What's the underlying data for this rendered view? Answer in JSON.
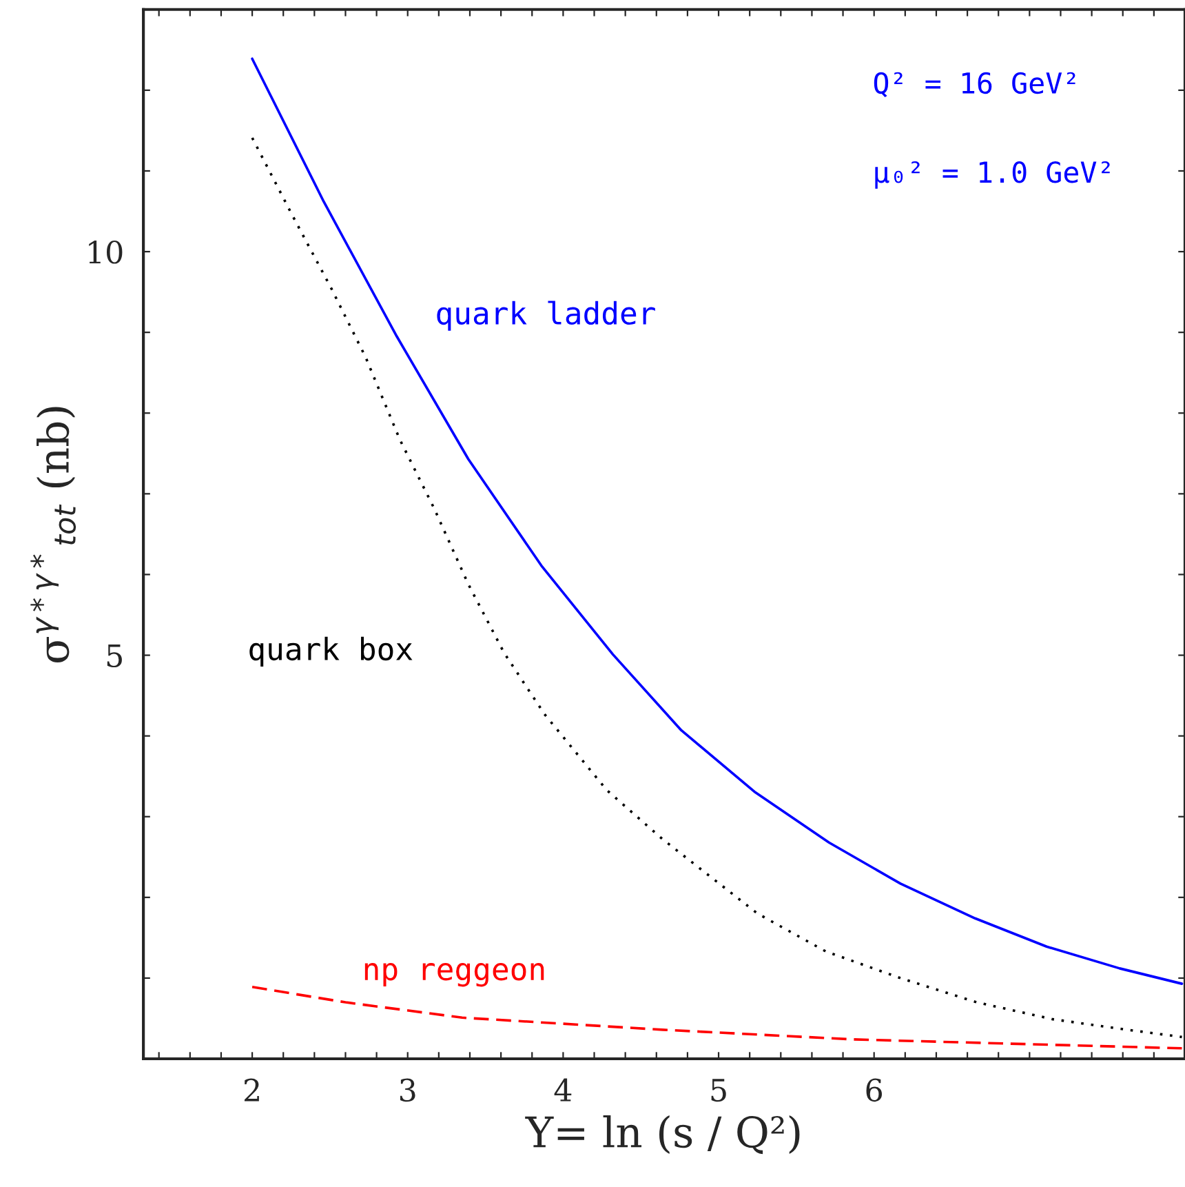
{
  "chart_data": {
    "type": "line",
    "xlabel": "Y= ln (s / Q²)",
    "ylabel": "σ$^{γ*γ*}$$_{tot}$ (nb)",
    "xlim": [
      1.3,
      8.0
    ],
    "ylim": [
      0,
      13
    ],
    "xticks": [
      {
        "value": 1.4,
        "label": null
      },
      {
        "value": 1.6,
        "label": null
      },
      {
        "value": 1.8,
        "label": null
      },
      2,
      {
        "value": 2.2,
        "label": null
      },
      {
        "value": 2.4,
        "label": null
      },
      {
        "value": 2.6,
        "label": null
      },
      {
        "value": 2.8,
        "label": null
      },
      3,
      {
        "value": 3.2,
        "label": null
      },
      {
        "value": 3.4,
        "label": null
      },
      {
        "value": 3.6,
        "label": null
      },
      {
        "value": 3.8,
        "label": null
      },
      4,
      {
        "value": 4.2,
        "label": null
      },
      {
        "value": 4.4,
        "label": null
      },
      {
        "value": 4.6,
        "label": null
      },
      {
        "value": 4.8,
        "label": null
      },
      5,
      {
        "value": 5.2,
        "label": null
      },
      {
        "value": 5.4,
        "label": null
      },
      {
        "value": 5.6,
        "label": null
      },
      {
        "value": 5.8,
        "label": null
      },
      6,
      {
        "value": 6.2,
        "label": null
      },
      {
        "value": 6.4,
        "label": null
      },
      {
        "value": 6.6,
        "label": null
      },
      {
        "value": 6.8,
        "label": null
      },
      {
        "value": 7.0,
        "label": null
      },
      {
        "value": 7.2,
        "label": null
      },
      {
        "value": 7.4,
        "label": null
      },
      {
        "value": 7.6,
        "label": null
      },
      {
        "value": 7.8,
        "label": null
      }
    ],
    "yticks": [
      {
        "value": 1,
        "label": null
      },
      {
        "value": 2,
        "label": null
      },
      {
        "value": 3,
        "label": null
      },
      {
        "value": 4,
        "label": null
      },
      5,
      {
        "value": 6,
        "label": null
      },
      {
        "value": 7,
        "label": null
      },
      {
        "value": 8,
        "label": null
      },
      {
        "value": 9,
        "label": null
      },
      10,
      {
        "value": 11,
        "label": null
      },
      {
        "value": 12,
        "label": null
      }
    ],
    "grid": false,
    "legend": false,
    "series": [
      {
        "name": "quark ladder",
        "color": "#0000ff",
        "line_style": "solid",
        "x": [
          2.0,
          2.46,
          2.93,
          3.39,
          3.86,
          4.32,
          4.76,
          5.23,
          5.71,
          6.17,
          6.65,
          7.11,
          7.58,
          7.98
        ],
        "values": [
          12.39,
          10.62,
          8.95,
          7.43,
          6.11,
          5.01,
          4.07,
          3.31,
          2.68,
          2.17,
          1.74,
          1.39,
          1.12,
          0.93
        ]
      },
      {
        "name": "quark box",
        "color": "#000000",
        "line_style": "dotted",
        "x": [
          2.0,
          2.25,
          2.51,
          2.73,
          2.95,
          3.17,
          3.39,
          3.62,
          3.88,
          4.28,
          4.64,
          5.25,
          5.69,
          6.17,
          6.66,
          7.15,
          7.63,
          7.98
        ],
        "values": [
          11.41,
          10.48,
          9.54,
          8.69,
          7.67,
          6.82,
          5.88,
          5.03,
          4.27,
          3.33,
          2.72,
          1.8,
          1.33,
          1.0,
          0.7,
          0.49,
          0.36,
          0.27
        ]
      },
      {
        "name": "np reggeon",
        "color": "#ff0000",
        "line_style": "dashed",
        "x": [
          2.0,
          2.6,
          3.35,
          4.64,
          5.87,
          7.98
        ],
        "values": [
          0.89,
          0.7,
          0.51,
          0.36,
          0.24,
          0.13
        ]
      }
    ],
    "annotations": [
      "Q² = 16 GeV²",
      "μ₀² = 1.0 GeV²"
    ]
  }
}
